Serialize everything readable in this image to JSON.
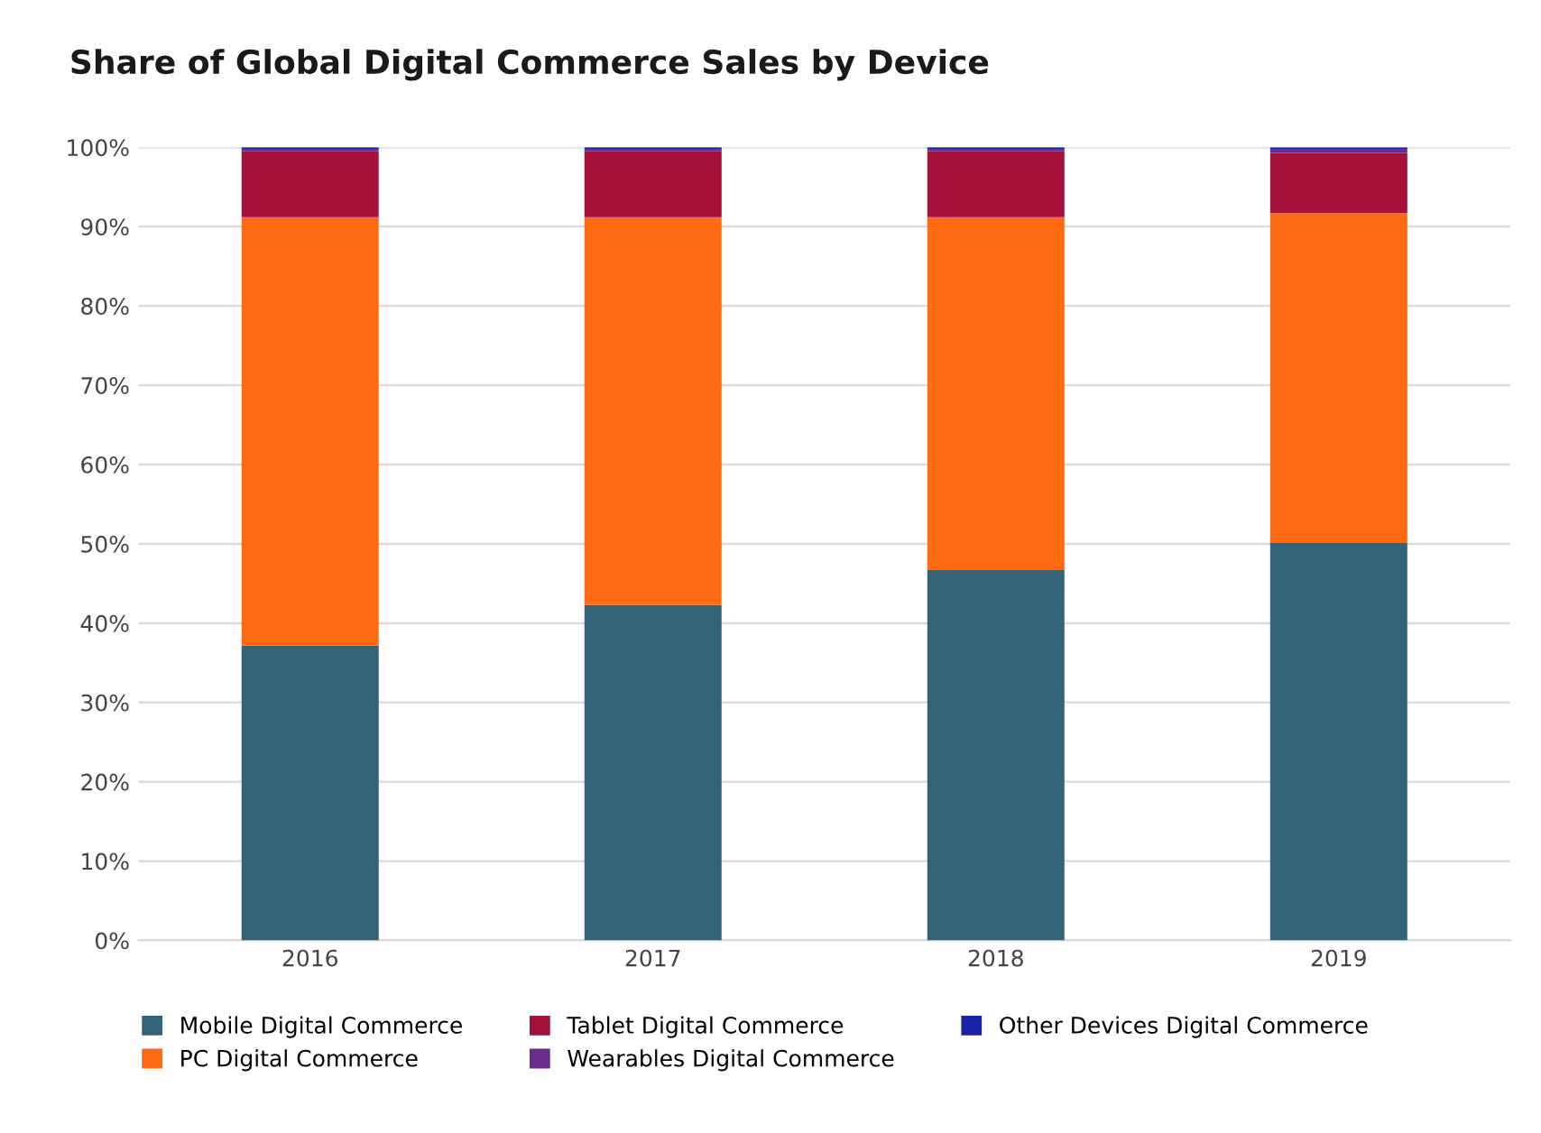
{
  "chart_data": {
    "type": "bar",
    "stacked": true,
    "title": "Share of Global Digital Commerce Sales by Device",
    "categories": [
      "2016",
      "2017",
      "2018",
      "2019"
    ],
    "series": [
      {
        "name": "Mobile Digital Commerce",
        "color": "#346379",
        "values": [
          37.2,
          42.3,
          46.7,
          50.1
        ]
      },
      {
        "name": "PC Digital Commerce",
        "color": "#ff6a13",
        "values": [
          54.0,
          48.9,
          44.5,
          41.6
        ]
      },
      {
        "name": "Tablet Digital Commerce",
        "color": "#a6113c",
        "values": [
          8.3,
          8.3,
          8.3,
          7.6
        ]
      },
      {
        "name": "Wearables Digital Commerce",
        "color": "#6b2c8a",
        "values": [
          0.3,
          0.3,
          0.3,
          0.5
        ]
      },
      {
        "name": "Other Devices Digital Commerce",
        "color": "#1a23a8",
        "values": [
          0.2,
          0.2,
          0.2,
          0.2
        ]
      }
    ],
    "ylim": [
      0,
      100
    ],
    "yticks": [
      {
        "value": 0,
        "label": "0%"
      },
      {
        "value": 10,
        "label": "10%"
      },
      {
        "value": 20,
        "label": "20%"
      },
      {
        "value": 30,
        "label": "30%"
      },
      {
        "value": 40,
        "label": "40%"
      },
      {
        "value": 50,
        "label": "50%"
      },
      {
        "value": 60,
        "label": "60%"
      },
      {
        "value": 70,
        "label": "70%"
      },
      {
        "value": 80,
        "label": "80%"
      },
      {
        "value": 90,
        "label": "90%"
      },
      {
        "value": 100,
        "label": "100%"
      }
    ],
    "grid": "y",
    "legend": "bottom"
  }
}
